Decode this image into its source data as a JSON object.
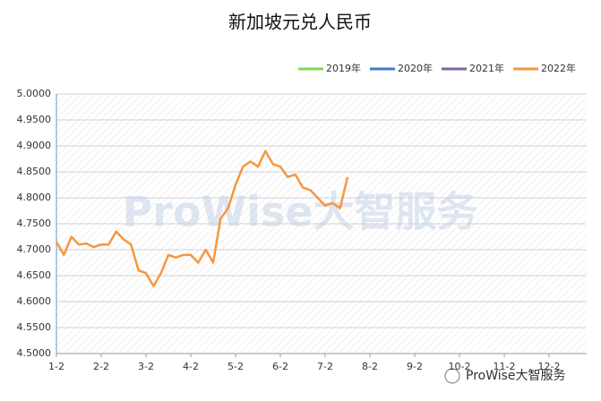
{
  "chart_data": {
    "type": "line",
    "title": "新加坡元兑人民币",
    "watermark": "ProWise大智服务",
    "footer": "ProWise大智服务",
    "categories": [
      "1-2",
      null,
      null,
      null,
      null,
      null,
      "2-2",
      null,
      null,
      null,
      null,
      null,
      "3-2",
      null,
      null,
      null,
      null,
      null,
      "4-2",
      null,
      null,
      null,
      null,
      null,
      "5-2",
      null,
      null,
      null,
      null,
      null,
      "6-2",
      null,
      null,
      null,
      null,
      null,
      "7-2",
      null,
      null,
      null,
      null,
      null,
      "8-2",
      null,
      null,
      null,
      null,
      null,
      "9-2",
      null,
      null,
      null,
      null,
      null,
      "10-2",
      null,
      null,
      null,
      null,
      null,
      "11-2",
      null,
      null,
      null,
      null,
      null,
      "12-2",
      null,
      null,
      null,
      null,
      null
    ],
    "series": [
      {
        "name": "2019年",
        "color": "#7ed957",
        "values": [
          null,
          null,
          null,
          null,
          null,
          null,
          null,
          null,
          null,
          null,
          null,
          null,
          null,
          null,
          null,
          null,
          null,
          null,
          null,
          null,
          null,
          null,
          null,
          null,
          null,
          null,
          null,
          null,
          null,
          null,
          null,
          null,
          null,
          null,
          null,
          null,
          null,
          null,
          null,
          null,
          null,
          null,
          null,
          null,
          null,
          null,
          null,
          null,
          null,
          null,
          null,
          null,
          null,
          null,
          null,
          null,
          null,
          null,
          null,
          null,
          null,
          null,
          null,
          null,
          null,
          null,
          null,
          null,
          null,
          null,
          null,
          null
        ]
      },
      {
        "name": "2020年",
        "color": "#3a7dc9",
        "values": [
          null,
          null,
          null,
          null,
          null,
          null,
          null,
          null,
          null,
          null,
          null,
          null,
          null,
          null,
          null,
          null,
          null,
          null,
          null,
          null,
          null,
          null,
          null,
          null,
          null,
          null,
          null,
          null,
          null,
          null,
          null,
          null,
          null,
          null,
          null,
          null,
          null,
          null,
          null,
          null,
          null,
          null,
          null,
          null,
          null,
          null,
          null,
          null,
          null,
          null,
          null,
          null,
          null,
          null,
          null,
          null,
          null,
          null,
          null,
          null,
          null,
          null,
          null,
          null,
          null,
          null,
          null,
          null,
          null,
          null,
          null,
          null
        ]
      },
      {
        "name": "2021年",
        "color": "#8064a2",
        "values": [
          null,
          null,
          null,
          null,
          null,
          null,
          null,
          null,
          null,
          null,
          null,
          null,
          null,
          null,
          null,
          null,
          null,
          null,
          null,
          null,
          null,
          null,
          null,
          null,
          null,
          null,
          null,
          null,
          null,
          null,
          null,
          null,
          null,
          null,
          null,
          null,
          null,
          null,
          null,
          null,
          null,
          null,
          null,
          null,
          null,
          null,
          null,
          null,
          null,
          null,
          null,
          null,
          null,
          null,
          null,
          null,
          null,
          null,
          null,
          null,
          null,
          null,
          null,
          null,
          null,
          null,
          null,
          null,
          null,
          null,
          null,
          null
        ]
      },
      {
        "name": "2022年",
        "color": "#f7963f",
        "values": [
          4.715,
          4.69,
          4.725,
          4.71,
          4.712,
          4.705,
          4.71,
          4.71,
          4.735,
          4.72,
          4.71,
          4.66,
          4.655,
          4.63,
          4.655,
          4.69,
          4.685,
          4.69,
          4.69,
          4.675,
          4.7,
          4.675,
          4.76,
          4.78,
          4.825,
          4.86,
          4.87,
          4.86,
          4.89,
          4.865,
          4.86,
          4.84,
          4.845,
          4.82,
          4.815,
          4.8,
          4.785,
          4.79,
          4.78,
          4.84,
          null,
          null,
          null,
          null,
          null,
          null,
          null,
          null,
          null,
          null,
          null,
          null,
          null,
          null,
          null,
          null,
          null,
          null,
          null,
          null,
          null,
          null,
          null,
          null,
          null,
          null,
          null,
          null,
          null,
          null,
          null,
          null
        ]
      }
    ],
    "ylim": [
      4.5,
      5.0
    ],
    "yticks": [
      {
        "value": 4.5,
        "label": "4.5000"
      },
      {
        "value": 4.55,
        "label": "4.5500"
      },
      {
        "value": 4.6,
        "label": "4.6000"
      },
      {
        "value": 4.65,
        "label": "4.6500"
      },
      {
        "value": 4.7,
        "label": "4.7000"
      },
      {
        "value": 4.75,
        "label": "4.7500"
      },
      {
        "value": 4.8,
        "label": "4.8000"
      },
      {
        "value": 4.85,
        "label": "4.8500"
      },
      {
        "value": 4.9,
        "label": "4.9000"
      },
      {
        "value": 4.95,
        "label": "4.9500"
      },
      {
        "value": 5.0,
        "label": "5.0000"
      }
    ],
    "grid": true,
    "legend": "top-right"
  }
}
